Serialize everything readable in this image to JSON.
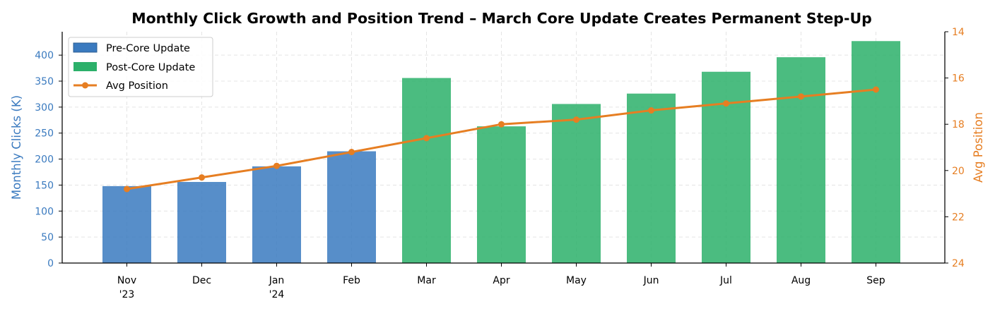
{
  "chart_data": {
    "type": "bar",
    "title": "Monthly Click Growth and Position Trend – March Core Update Creates Permanent Step-Up",
    "categories": [
      [
        "Nov",
        "'23"
      ],
      [
        "Dec"
      ],
      [
        "Jan",
        "'24"
      ],
      [
        "Feb"
      ],
      [
        "Mar"
      ],
      [
        "Apr"
      ],
      [
        "May"
      ],
      [
        "Jun"
      ],
      [
        "Jul"
      ],
      [
        "Aug"
      ],
      [
        "Sep"
      ]
    ],
    "series": [
      {
        "name": "Pre-Core Update",
        "kind": "bar",
        "axis": "left",
        "color": "#3a7abf",
        "values": [
          148,
          156,
          186,
          215,
          null,
          null,
          null,
          null,
          null,
          null,
          null
        ]
      },
      {
        "name": "Post-Core Update",
        "kind": "bar",
        "axis": "left",
        "color": "#2cb06a",
        "values": [
          null,
          null,
          null,
          null,
          356,
          263,
          306,
          326,
          368,
          396,
          427
        ]
      },
      {
        "name": "Avg Position",
        "kind": "line",
        "axis": "right",
        "color": "#e67e22",
        "values": [
          20.8,
          20.3,
          19.8,
          19.2,
          18.6,
          18.0,
          17.8,
          17.4,
          17.1,
          16.8,
          16.5
        ]
      }
    ],
    "ylabel": "Monthly Clicks (K)",
    "ylim": [
      0,
      445
    ],
    "yticks": [
      "0",
      "50",
      "100",
      "150",
      "200",
      "250",
      "300",
      "350",
      "400"
    ],
    "y2label": "Avg Position",
    "y2lim": [
      24,
      14
    ],
    "y2inverted": true,
    "y2ticks": [
      "14",
      "16",
      "18",
      "20",
      "22",
      "24"
    ],
    "grid": true,
    "legend_position": "top-left",
    "colors": {
      "left_axis": "#3a7abf",
      "right_axis": "#e67e22"
    }
  }
}
